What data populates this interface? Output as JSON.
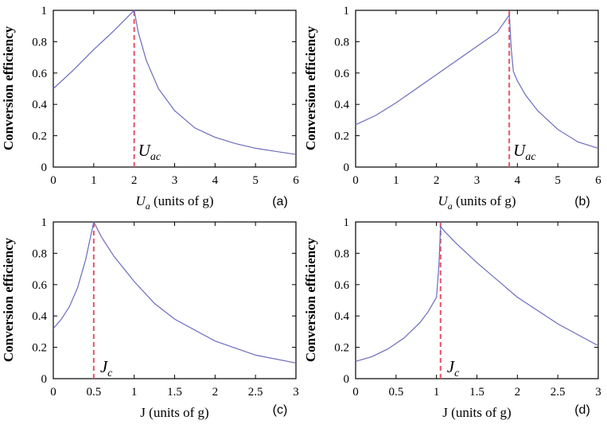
{
  "chart_data": [
    {
      "type": "line",
      "panel_label": "(a)",
      "ylabel": "Conversion efficiency",
      "xlabel_var": "U",
      "xlabel_sub": "a",
      "xlabel_rest": " (units of g)",
      "xlim": [
        0,
        6
      ],
      "ylim": [
        0,
        1
      ],
      "xticks": [
        "0",
        "1",
        "2",
        "3",
        "4",
        "5",
        "6"
      ],
      "yticks": [
        "0",
        "0.2",
        "0.4",
        "0.6",
        "0.8",
        "1"
      ],
      "critical": {
        "x": 2.0,
        "label_var": "U",
        "label_sub": "ac"
      },
      "series": [
        {
          "name": "efficiency",
          "x": [
            0,
            0.5,
            1,
            1.5,
            2.0,
            2.1,
            2.3,
            2.6,
            3,
            3.5,
            4,
            4.5,
            5,
            5.5,
            6
          ],
          "y": [
            0.5,
            0.62,
            0.75,
            0.87,
            1.0,
            0.86,
            0.68,
            0.5,
            0.36,
            0.25,
            0.19,
            0.15,
            0.12,
            0.1,
            0.08
          ]
        }
      ]
    },
    {
      "type": "line",
      "panel_label": "(b)",
      "ylabel": "Conversion efficiency",
      "xlabel_var": "U",
      "xlabel_sub": "a",
      "xlabel_rest": " (units of g)",
      "xlim": [
        0,
        6
      ],
      "ylim": [
        0,
        1
      ],
      "xticks": [
        "0",
        "1",
        "2",
        "3",
        "4",
        "5",
        "6"
      ],
      "yticks": [
        "0",
        "0.2",
        "0.4",
        "0.6",
        "0.8",
        "1"
      ],
      "critical": {
        "x": 3.8,
        "label_var": "U",
        "label_sub": "ac"
      },
      "series": [
        {
          "name": "efficiency",
          "x": [
            0,
            0.5,
            1,
            1.5,
            2,
            2.5,
            3,
            3.5,
            3.8,
            3.85,
            3.9,
            4.0,
            4.2,
            4.5,
            5,
            5.5,
            6
          ],
          "y": [
            0.27,
            0.33,
            0.41,
            0.5,
            0.59,
            0.68,
            0.77,
            0.86,
            0.97,
            0.75,
            0.61,
            0.55,
            0.46,
            0.36,
            0.24,
            0.16,
            0.12
          ]
        }
      ]
    },
    {
      "type": "line",
      "panel_label": "(c)",
      "ylabel": "Conversion efficiency",
      "xlabel_var": "J",
      "xlabel_sub": "",
      "xlabel_rest": " (units of g)",
      "xlim": [
        0,
        3
      ],
      "ylim": [
        0,
        1
      ],
      "xticks": [
        "0",
        "0.5",
        "1",
        "1.5",
        "2",
        "2.5",
        "3"
      ],
      "yticks": [
        "0",
        "0.2",
        "0.4",
        "0.6",
        "0.8",
        "1"
      ],
      "critical": {
        "x": 0.5,
        "label_var": "J",
        "label_sub": "c"
      },
      "series": [
        {
          "name": "efficiency",
          "x": [
            0,
            0.1,
            0.2,
            0.3,
            0.4,
            0.5,
            0.6,
            0.75,
            1,
            1.25,
            1.5,
            2,
            2.5,
            3
          ],
          "y": [
            0.32,
            0.38,
            0.46,
            0.58,
            0.76,
            1.0,
            0.9,
            0.78,
            0.62,
            0.48,
            0.38,
            0.24,
            0.15,
            0.1
          ]
        }
      ]
    },
    {
      "type": "line",
      "panel_label": "(d)",
      "ylabel": "Conversion efficiency",
      "xlabel_var": "J",
      "xlabel_sub": "",
      "xlabel_rest": " (units of g)",
      "xlim": [
        0,
        3
      ],
      "ylim": [
        0,
        1
      ],
      "xticks": [
        "0",
        "0.5",
        "1",
        "1.5",
        "2",
        "2.5",
        "3"
      ],
      "yticks": [
        "0",
        "0.2",
        "0.4",
        "0.6",
        "0.8",
        "1"
      ],
      "critical": {
        "x": 1.05,
        "label_var": "J",
        "label_sub": "c"
      },
      "series": [
        {
          "name": "efficiency",
          "x": [
            0,
            0.2,
            0.4,
            0.6,
            0.8,
            0.9,
            1.0,
            1.03,
            1.05,
            1.1,
            1.25,
            1.5,
            2,
            2.5,
            3
          ],
          "y": [
            0.11,
            0.14,
            0.19,
            0.26,
            0.36,
            0.43,
            0.52,
            0.72,
            0.97,
            0.94,
            0.86,
            0.74,
            0.52,
            0.35,
            0.21
          ]
        }
      ]
    }
  ]
}
